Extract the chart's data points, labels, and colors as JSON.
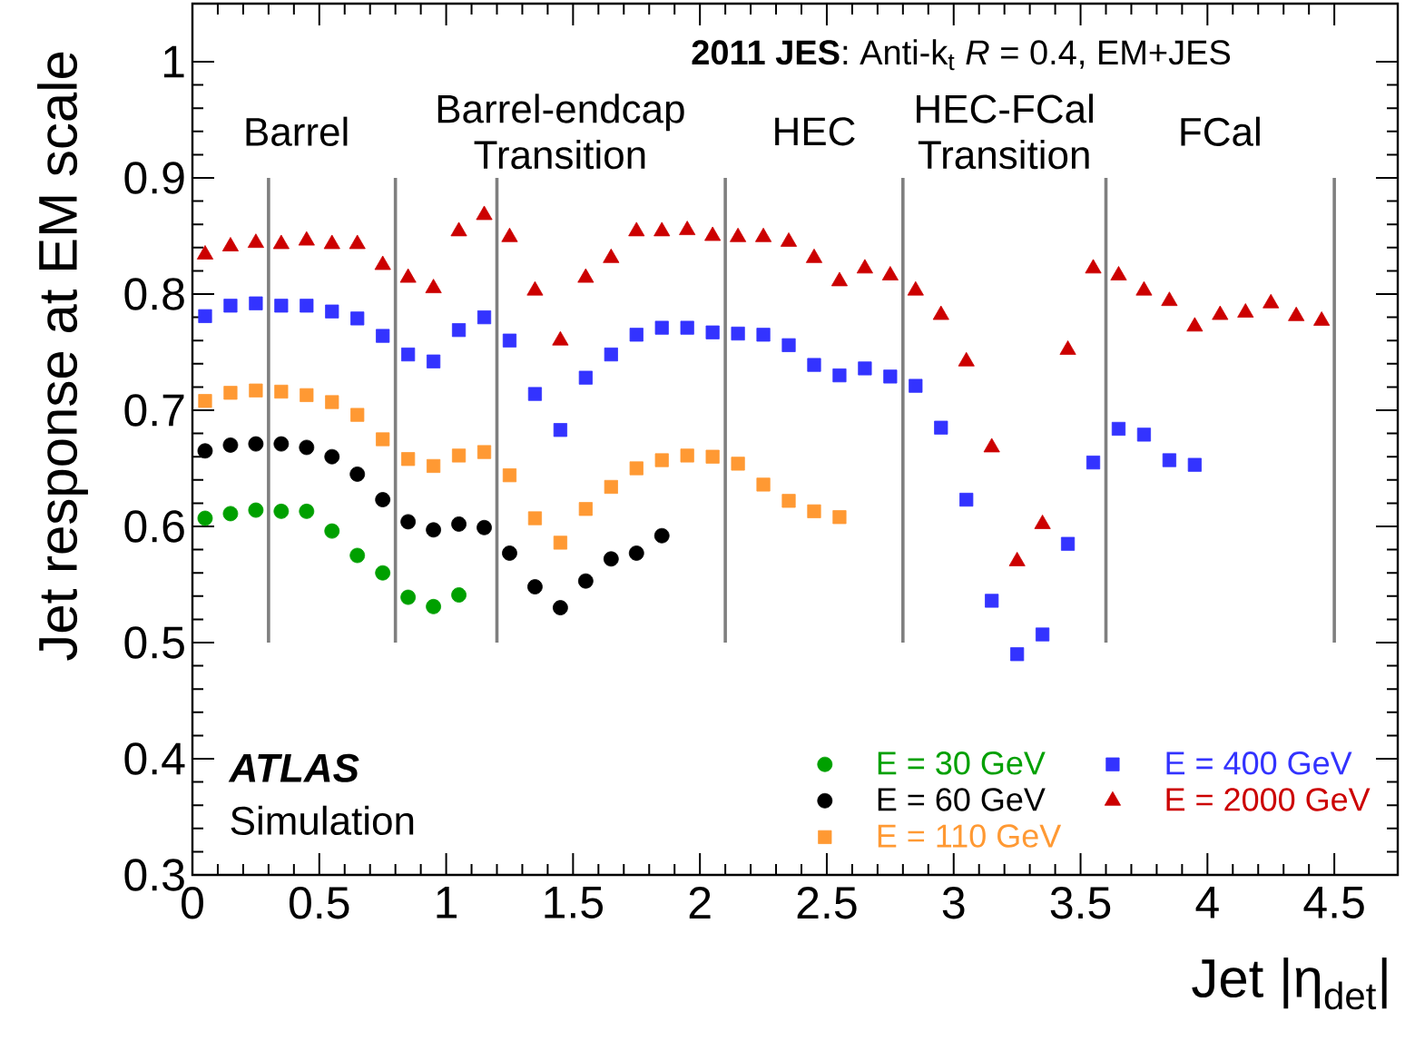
{
  "chart_data": {
    "type": "scatter",
    "title": "**2011 JES**: Anti-k$_{t}$ *R* = 0.4, EM+JES",
    "xlabel": "Jet |η$_{det}$|",
    "ylabel": "Jet response at EM scale",
    "xlim": [
      0,
      4.75
    ],
    "ylim": [
      0.3,
      1.05
    ],
    "xticks": [
      0,
      0.5,
      1,
      1.5,
      2,
      2.5,
      3,
      3.5,
      4,
      4.5
    ],
    "yticks": [
      0.3,
      0.4,
      0.5,
      0.6,
      0.7,
      0.8,
      0.9,
      1
    ],
    "legend": "bottom right",
    "ref_lines": [
      {
        "axis": "x",
        "value": 0.3,
        "color": "#7f7f7f"
      },
      {
        "axis": "x",
        "value": 0.8,
        "color": "#7f7f7f"
      },
      {
        "axis": "x",
        "value": 1.2,
        "color": "#7f7f7f"
      },
      {
        "axis": "x",
        "value": 2.1,
        "color": "#7f7f7f"
      },
      {
        "axis": "x",
        "value": 2.8,
        "color": "#7f7f7f"
      },
      {
        "axis": "x",
        "value": 3.6,
        "color": "#7f7f7f"
      },
      {
        "axis": "x",
        "value": 4.5,
        "color": "#7f7f7f"
      }
    ],
    "annotations": [
      "Barrel",
      "Barrel-endcap Transition",
      "HEC",
      "HEC-FCal Transition",
      "FCal",
      "ATLAS",
      "Simulation"
    ],
    "series": [
      {
        "name": "E = 30 GeV",
        "color": "#00a000",
        "marker": "circle",
        "x": [
          0.05,
          0.15,
          0.25,
          0.35,
          0.45,
          0.55,
          0.65,
          0.75,
          0.85,
          0.95,
          1.05
        ],
        "values": [
          0.607,
          0.611,
          0.614,
          0.613,
          0.613,
          0.596,
          0.575,
          0.56,
          0.539,
          0.531,
          0.541
        ]
      },
      {
        "name": "E = 60 GeV",
        "color": "#000000",
        "marker": "circle",
        "x": [
          0.05,
          0.15,
          0.25,
          0.35,
          0.45,
          0.55,
          0.65,
          0.75,
          0.85,
          0.95,
          1.05,
          1.15,
          1.25,
          1.35,
          1.45,
          1.55,
          1.65,
          1.75,
          1.85
        ],
        "values": [
          0.665,
          0.67,
          0.671,
          0.671,
          0.668,
          0.66,
          0.645,
          0.623,
          0.604,
          0.597,
          0.602,
          0.599,
          0.577,
          0.548,
          0.53,
          0.553,
          0.572,
          0.577,
          0.592
        ]
      },
      {
        "name": "E = 110 GeV",
        "color": "#ff9933",
        "marker": "square",
        "x": [
          0.05,
          0.15,
          0.25,
          0.35,
          0.45,
          0.55,
          0.65,
          0.75,
          0.85,
          0.95,
          1.05,
          1.15,
          1.25,
          1.35,
          1.45,
          1.55,
          1.65,
          1.75,
          1.85,
          1.95,
          2.05,
          2.15,
          2.25,
          2.35,
          2.45,
          2.55
        ],
        "values": [
          0.708,
          0.715,
          0.717,
          0.716,
          0.713,
          0.707,
          0.696,
          0.675,
          0.658,
          0.652,
          0.661,
          0.664,
          0.644,
          0.607,
          0.586,
          0.615,
          0.634,
          0.65,
          0.657,
          0.661,
          0.66,
          0.654,
          0.636,
          0.622,
          0.613,
          0.608
        ]
      },
      {
        "name": "E = 400 GeV",
        "color": "#3333ff",
        "marker": "square",
        "x": [
          0.05,
          0.15,
          0.25,
          0.35,
          0.45,
          0.55,
          0.65,
          0.75,
          0.85,
          0.95,
          1.05,
          1.15,
          1.25,
          1.35,
          1.45,
          1.55,
          1.65,
          1.75,
          1.85,
          1.95,
          2.05,
          2.15,
          2.25,
          2.35,
          2.45,
          2.55,
          2.65,
          2.75,
          2.85,
          2.95,
          3.05,
          3.15,
          3.25,
          3.35,
          3.45,
          3.55,
          3.65,
          3.75,
          3.85,
          3.95
        ],
        "values": [
          0.781,
          0.79,
          0.792,
          0.79,
          0.79,
          0.785,
          0.779,
          0.764,
          0.748,
          0.742,
          0.769,
          0.78,
          0.76,
          0.714,
          0.683,
          0.728,
          0.748,
          0.765,
          0.771,
          0.771,
          0.767,
          0.766,
          0.765,
          0.756,
          0.739,
          0.73,
          0.736,
          0.729,
          0.721,
          0.685,
          0.623,
          0.536,
          0.49,
          0.507,
          0.585,
          0.655,
          0.684,
          0.679,
          0.657,
          0.653
        ]
      },
      {
        "name": "E = 2000 GeV",
        "color": "#cc0000",
        "marker": "triangle",
        "x": [
          0.05,
          0.15,
          0.25,
          0.35,
          0.45,
          0.55,
          0.65,
          0.75,
          0.85,
          0.95,
          1.05,
          1.15,
          1.25,
          1.35,
          1.45,
          1.55,
          1.65,
          1.75,
          1.85,
          1.95,
          2.05,
          2.15,
          2.25,
          2.35,
          2.45,
          2.55,
          2.65,
          2.75,
          2.85,
          2.95,
          3.05,
          3.15,
          3.25,
          3.35,
          3.45,
          3.55,
          3.65,
          3.75,
          3.85,
          3.95,
          4.05,
          4.15,
          4.25,
          4.35,
          4.45
        ],
        "values": [
          0.834,
          0.841,
          0.844,
          0.843,
          0.846,
          0.843,
          0.843,
          0.825,
          0.814,
          0.805,
          0.854,
          0.868,
          0.849,
          0.803,
          0.76,
          0.814,
          0.831,
          0.854,
          0.854,
          0.855,
          0.85,
          0.849,
          0.849,
          0.845,
          0.831,
          0.811,
          0.822,
          0.816,
          0.803,
          0.782,
          0.742,
          0.668,
          0.57,
          0.602,
          0.752,
          0.822,
          0.816,
          0.803,
          0.794,
          0.772,
          0.782,
          0.784,
          0.792,
          0.781,
          0.777
        ]
      }
    ]
  }
}
